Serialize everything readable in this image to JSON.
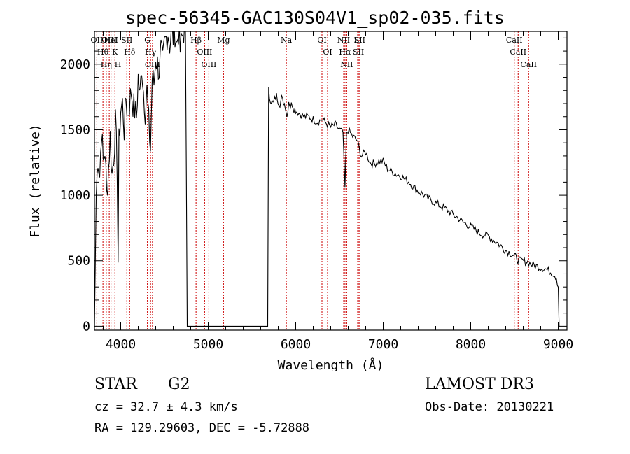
{
  "chart_data": {
    "type": "line",
    "title": "spec-56345-GAC130S04V1_sp02-035.fits",
    "xlabel": "Wavelength (Å)",
    "ylabel": "Flux (relative)",
    "xlim": [
      3700,
      9100
    ],
    "ylim": [
      -30,
      2250
    ],
    "x_ticks": [
      4000,
      5000,
      6000,
      7000,
      8000,
      9000
    ],
    "x_tick_labels": [
      "4000",
      "5000",
      "6000",
      "7000",
      "8000",
      "9000"
    ],
    "y_ticks": [
      0,
      500,
      1000,
      1500,
      2000
    ],
    "y_tick_labels": [
      "0",
      "500",
      "1000",
      "1500",
      "2000"
    ],
    "series": [
      {
        "name": "flux",
        "x": [
          3700,
          3720,
          3740,
          3760,
          3780,
          3800,
          3820,
          3840,
          3860,
          3880,
          3900,
          3920,
          3940,
          3960,
          3970,
          3980,
          4000,
          4020,
          4040,
          4060,
          4080,
          4100,
          4120,
          4140,
          4160,
          4180,
          4200,
          4220,
          4240,
          4260,
          4280,
          4300,
          4320,
          4340,
          4360,
          4380,
          4400,
          4420,
          4440,
          4460,
          4480,
          4500,
          4520,
          4540,
          4560,
          4580,
          4600,
          4620,
          4640,
          4660,
          4680,
          4700,
          4720,
          4740,
          4760,
          4770,
          4780,
          4790,
          4800,
          4850,
          4900,
          5000,
          5100,
          5200,
          5300,
          5400,
          5500,
          5600,
          5680,
          5690,
          5700,
          5720,
          5740,
          5760,
          5780,
          5800,
          5820,
          5840,
          5860,
          5880,
          5900,
          5920,
          5940,
          5960,
          5980,
          6000,
          6050,
          6100,
          6150,
          6200,
          6250,
          6300,
          6350,
          6400,
          6450,
          6500,
          6540,
          6563,
          6580,
          6600,
          6650,
          6700,
          6750,
          6800,
          6850,
          6900,
          6950,
          7000,
          7050,
          7100,
          7150,
          7200,
          7250,
          7300,
          7350,
          7400,
          7450,
          7500,
          7550,
          7600,
          7650,
          7700,
          7750,
          7800,
          7850,
          7900,
          7950,
          8000,
          8050,
          8100,
          8150,
          8200,
          8250,
          8300,
          8350,
          8400,
          8450,
          8500,
          8520,
          8550,
          8600,
          8650,
          8700,
          8750,
          8800,
          8850,
          8900,
          8950,
          8980,
          9000,
          9010
        ],
        "y": [
          0,
          1000,
          1300,
          1150,
          1500,
          1250,
          1350,
          1000,
          1200,
          1450,
          1150,
          1300,
          1550,
          1200,
          500,
          1400,
          1650,
          1700,
          1500,
          1750,
          1600,
          1700,
          1800,
          1700,
          1650,
          1600,
          1900,
          1750,
          2000,
          1800,
          1650,
          1800,
          1550,
          1350,
          1900,
          1850,
          2050,
          2000,
          1950,
          2100,
          2000,
          2150,
          2200,
          2250,
          2150,
          2250,
          2200,
          2250,
          2150,
          2250,
          2100,
          2200,
          2250,
          2250,
          0,
          0,
          0,
          0,
          0,
          0,
          0,
          0,
          0,
          0,
          0,
          0,
          0,
          0,
          0,
          1800,
          1750,
          1720,
          1700,
          1730,
          1760,
          1720,
          1700,
          1740,
          1710,
          1690,
          1600,
          1720,
          1680,
          1700,
          1660,
          1650,
          1620,
          1600,
          1600,
          1580,
          1560,
          1580,
          1550,
          1520,
          1540,
          1500,
          1480,
          1050,
          1460,
          1500,
          1450,
          1420,
          1300,
          1330,
          1250,
          1240,
          1260,
          1260,
          1200,
          1180,
          1160,
          1150,
          1120,
          1100,
          1060,
          1030,
          1010,
          980,
          960,
          940,
          920,
          900,
          880,
          850,
          830,
          800,
          780,
          760,
          740,
          710,
          700,
          690,
          660,
          640,
          610,
          580,
          560,
          540,
          520,
          500,
          500,
          490,
          470,
          460,
          450,
          440,
          420,
          400,
          370,
          300,
          0
        ]
      }
    ],
    "lines": [
      {
        "label": "Hθ",
        "x": 3797
      },
      {
        "label": "OII",
        "x": 3727
      },
      {
        "label": "OIII",
        "x": 3869
      },
      {
        "label": "K",
        "x": 3934
      },
      {
        "label": "H",
        "x": 3968
      },
      {
        "label": "HeI",
        "x": 3889
      },
      {
        "label": "Hη",
        "x": 3835
      },
      {
        "label": "Hδ",
        "x": 4102
      },
      {
        "label": "SII",
        "x": 4070
      },
      {
        "label": "G",
        "x": 4305
      },
      {
        "label": "Hγ",
        "x": 4341
      },
      {
        "label": "OIII",
        "x": 4363
      },
      {
        "label": "Hβ",
        "x": 4861
      },
      {
        "label": "OIII",
        "x": 4959
      },
      {
        "label": "OIII",
        "x": 5007
      },
      {
        "label": "Mg",
        "x": 5175
      },
      {
        "label": "Na",
        "x": 5893
      },
      {
        "label": "OI",
        "x": 6300
      },
      {
        "label": "OI",
        "x": 6364
      },
      {
        "label": "NII",
        "x": 6548
      },
      {
        "label": "Hα",
        "x": 6563
      },
      {
        "label": "NII",
        "x": 6583
      },
      {
        "label": "Li",
        "x": 6708
      },
      {
        "label": "SII",
        "x": 6717
      },
      {
        "label": "SII",
        "x": 6731
      },
      {
        "label": "CaII",
        "x": 8498
      },
      {
        "label": "CaII",
        "x": 8542
      },
      {
        "label": "CaII",
        "x": 8662
      }
    ]
  },
  "info": {
    "object_class": "STAR",
    "subclass": "G2",
    "survey": "LAMOST DR3",
    "redshift": "cz = 32.7 ± 4.3 km/s",
    "obs_date": "Obs-Date: 20130221",
    "coords": "RA = 129.29603, DEC =  -5.72888"
  },
  "colors": {
    "line_marker": "#cc0000",
    "spectrum": "#000000"
  }
}
